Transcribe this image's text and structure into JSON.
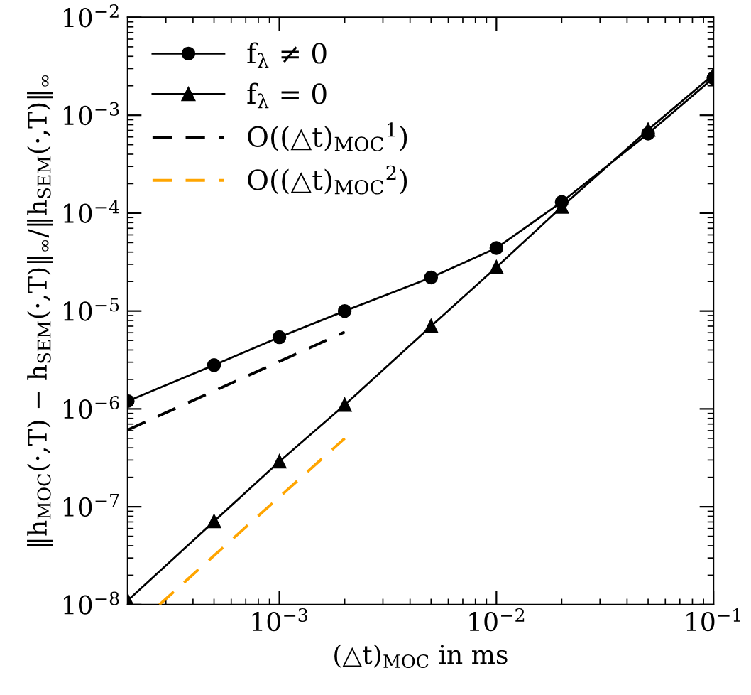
{
  "chart_data": {
    "type": "line",
    "xlabel": "(△t)$_{MOC}$ in ms",
    "ylabel": "‖h$_{MOC}$(·,T) − h$_{SEM}$(·,T)‖$_{∞}$/‖h$_{SEM}$(·,T)‖$_{∞}$",
    "log": "xy",
    "xlim": [
      0.0002,
      0.1
    ],
    "ylim": [
      1e-08,
      0.01
    ],
    "xticks": [
      {
        "value": 0.001,
        "label": "10$^{−3}$"
      },
      {
        "value": 0.01,
        "label": "10$^{−2}$"
      },
      {
        "value": 0.1,
        "label": "10$^{−1}$"
      }
    ],
    "yticks": [
      {
        "value": 1e-08,
        "label": "10$^{−8}$"
      },
      {
        "value": 1e-07,
        "label": "10$^{−7}$"
      },
      {
        "value": 1e-06,
        "label": "10$^{−6}$"
      },
      {
        "value": 1e-05,
        "label": "10$^{−5}$"
      },
      {
        "value": 0.0001,
        "label": "10$^{−4}$"
      },
      {
        "value": 0.001,
        "label": "10$^{−3}$"
      },
      {
        "value": 0.01,
        "label": "10$^{−2}$"
      }
    ],
    "grid": false,
    "legend": "top left",
    "series": [
      {
        "name": "f$_{λ}$ ≠ 0",
        "color": "#000000",
        "marker": "circle",
        "line_style": "solid",
        "x": [
          0.0002,
          0.0005,
          0.001,
          0.002,
          0.005,
          0.01,
          0.02,
          0.05,
          0.1
        ],
        "values": [
          1.2e-06,
          2.8e-06,
          5.4e-06,
          1e-05,
          2.2e-05,
          4.4e-05,
          0.00013,
          0.00065,
          0.0024
        ]
      },
      {
        "name": "f$_{λ}$ = 0",
        "color": "#000000",
        "marker": "triangle",
        "line_style": "solid",
        "x": [
          0.0002,
          0.0005,
          0.001,
          0.002,
          0.005,
          0.01,
          0.02,
          0.05,
          0.1
        ],
        "values": [
          1.1e-08,
          7.1e-08,
          2.9e-07,
          1.1e-06,
          7e-06,
          2.8e-05,
          0.000116,
          0.00071,
          0.0026
        ]
      },
      {
        "name": "O((△t)$_{MOC}$$^{1}$)",
        "color": "#000000",
        "marker": "none",
        "line_style": "dashed",
        "x": [
          0.0002,
          0.002
        ],
        "values": [
          6.1e-07,
          6.1e-06
        ]
      },
      {
        "name": "O((△t)$_{MOC}$$^{2}$)",
        "color": "#ffa500",
        "marker": "none",
        "line_style": "dashed",
        "x": [
          0.00028,
          0.002
        ],
        "values": [
          1e-08,
          5e-07
        ]
      }
    ]
  }
}
